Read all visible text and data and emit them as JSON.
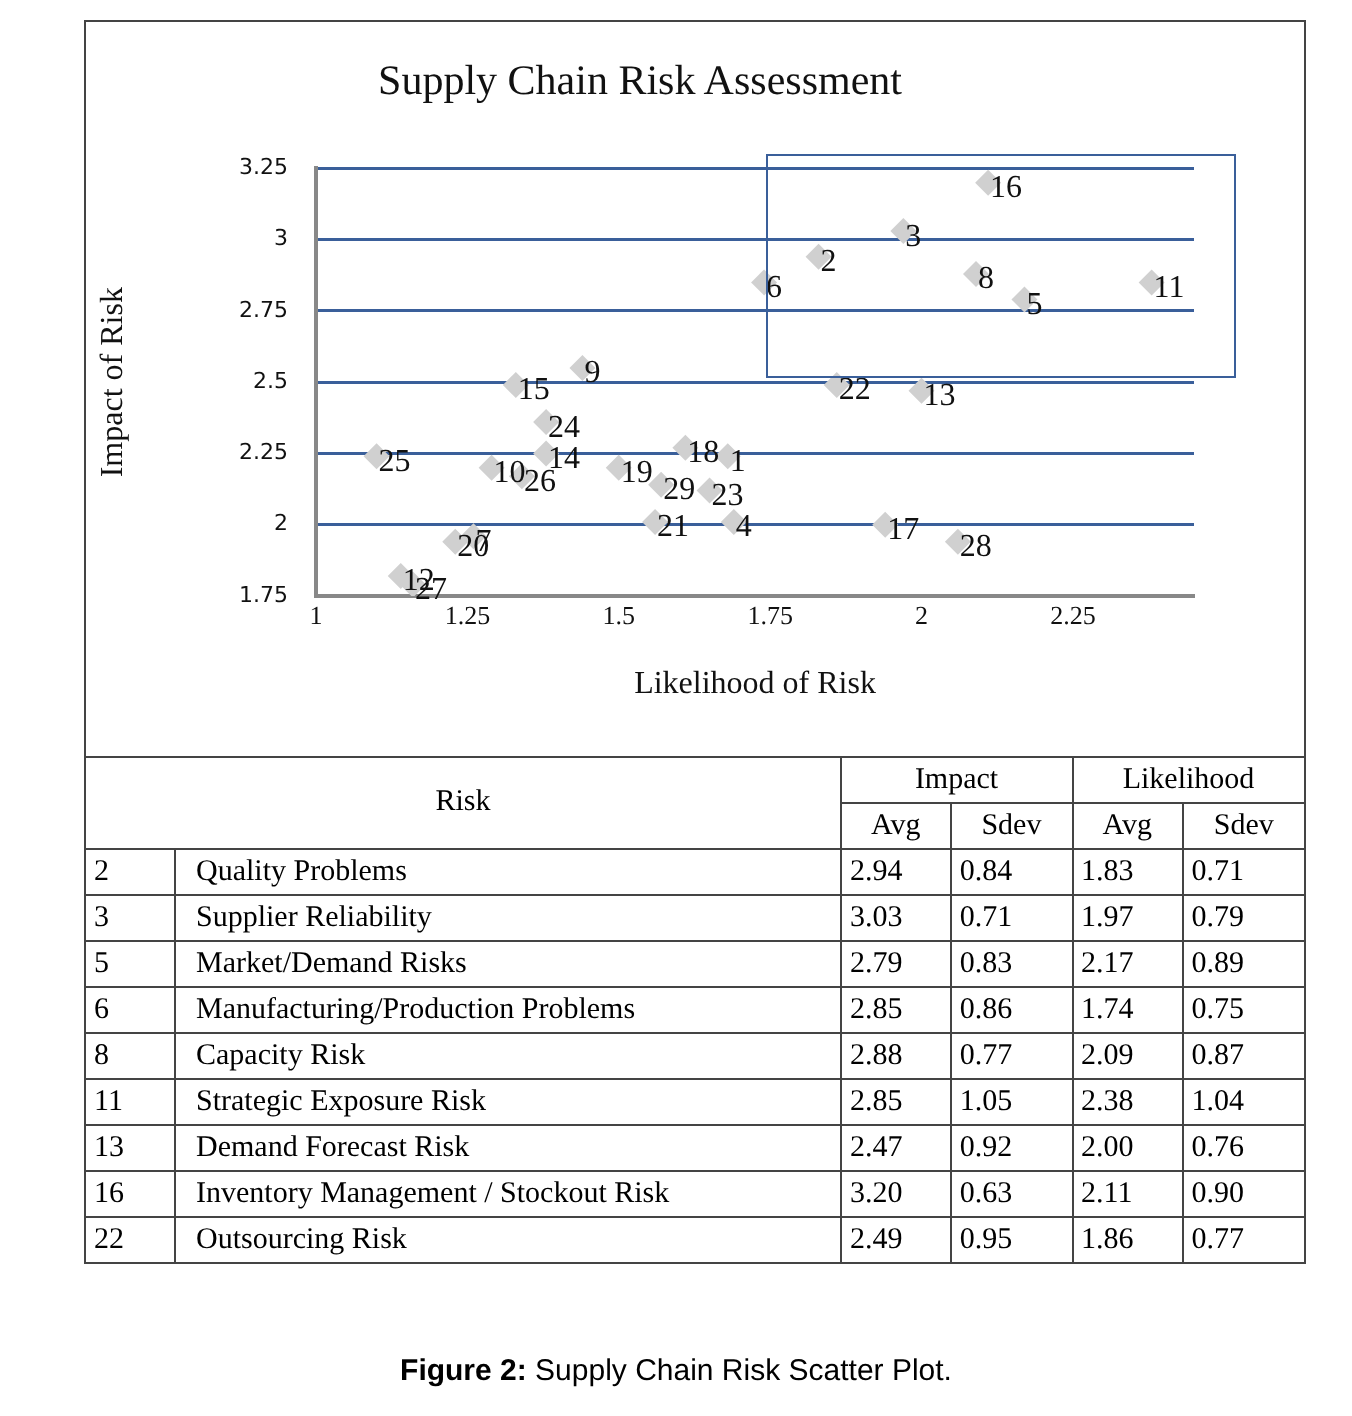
{
  "chart_data": [
    {
      "type": "scatter",
      "title": "Supply Chain Risk Assessment",
      "xlabel": "Likelihood of Risk",
      "ylabel": "Impact of Risk",
      "x": [
        1.68,
        1.83,
        1.97,
        1.69,
        2.17,
        1.74,
        1.26,
        2.09,
        1.44,
        1.29,
        2.38,
        1.14,
        2.0,
        1.38,
        1.33,
        2.11,
        1.94,
        1.61,
        1.5,
        1.23,
        1.56,
        1.86,
        1.65,
        1.38,
        1.1,
        1.34,
        1.16,
        2.06,
        1.57
      ],
      "values": [
        2.24,
        2.94,
        3.03,
        2.01,
        2.79,
        2.85,
        1.96,
        2.88,
        2.55,
        2.2,
        2.85,
        1.82,
        2.47,
        2.25,
        2.49,
        3.2,
        2.0,
        2.27,
        2.2,
        1.94,
        2.01,
        2.49,
        2.12,
        2.36,
        2.24,
        2.17,
        1.79,
        1.94,
        2.14
      ],
      "color": "#d0d0d0",
      "marker": "diamond",
      "grid": "y",
      "legend": false,
      "xlim": [
        1,
        2.45
      ],
      "xticks": [
        1,
        1.25,
        1.5,
        1.75,
        2,
        2.25
      ],
      "ylim": [
        1.75,
        3.25
      ],
      "yticks": [
        1.75,
        2,
        2.25,
        2.5,
        2.75,
        3,
        3.25
      ],
      "annotations": [
        {
          "text": "1",
          "x": 1.68,
          "y": 2.24
        },
        {
          "text": "2",
          "x": 1.83,
          "y": 2.94
        },
        {
          "text": "3",
          "x": 1.97,
          "y": 3.03
        },
        {
          "text": "4",
          "x": 1.69,
          "y": 2.01
        },
        {
          "text": "5",
          "x": 2.17,
          "y": 2.79
        },
        {
          "text": "6",
          "x": 1.74,
          "y": 2.85
        },
        {
          "text": "7",
          "x": 1.26,
          "y": 1.96
        },
        {
          "text": "8",
          "x": 2.09,
          "y": 2.88
        },
        {
          "text": "9",
          "x": 1.44,
          "y": 2.55
        },
        {
          "text": "10",
          "x": 1.29,
          "y": 2.2
        },
        {
          "text": "11",
          "x": 2.38,
          "y": 2.85
        },
        {
          "text": "12",
          "x": 1.14,
          "y": 1.82
        },
        {
          "text": "13",
          "x": 2.0,
          "y": 2.47
        },
        {
          "text": "14",
          "x": 1.38,
          "y": 2.25
        },
        {
          "text": "15",
          "x": 1.33,
          "y": 2.49
        },
        {
          "text": "16",
          "x": 2.11,
          "y": 3.2
        },
        {
          "text": "17",
          "x": 1.94,
          "y": 2.0
        },
        {
          "text": "18",
          "x": 1.61,
          "y": 2.27
        },
        {
          "text": "19",
          "x": 1.5,
          "y": 2.2
        },
        {
          "text": "20",
          "x": 1.23,
          "y": 1.94
        },
        {
          "text": "21",
          "x": 1.56,
          "y": 2.01
        },
        {
          "text": "22",
          "x": 1.86,
          "y": 2.49
        },
        {
          "text": "23",
          "x": 1.65,
          "y": 2.12
        },
        {
          "text": "24",
          "x": 1.38,
          "y": 2.36
        },
        {
          "text": "25",
          "x": 1.1,
          "y": 2.24
        },
        {
          "text": "26",
          "x": 1.34,
          "y": 2.17
        },
        {
          "text": "27",
          "x": 1.16,
          "y": 1.79
        },
        {
          "text": "28",
          "x": 2.06,
          "y": 1.94
        },
        {
          "text": "29",
          "x": 1.57,
          "y": 2.14
        }
      ]
    },
    {
      "type": "other",
      "annotations": [
        "Risk",
        "Impact",
        "Likelihood",
        "Figure 2: Supply Chain Risk Scatter Plot."
      ],
      "categories": [
        "Quality Problems",
        "Supplier Reliability",
        "Market/Demand Risks",
        "Manufacturing/Production Problems",
        "Capacity Risk",
        "Strategic Exposure Risk",
        "Demand Forecast Risk",
        "Inventory Management / Stockout Risk",
        "Outsourcing Risk"
      ],
      "series": [
        {
          "values": [
            2,
            3,
            5,
            6,
            8,
            11,
            13,
            16,
            22
          ],
          "value_labels": [
            "2",
            "3",
            "5",
            "6",
            "8",
            "11",
            "13",
            "16",
            "22"
          ]
        },
        {
          "name": "Avg",
          "values": [
            2.94,
            3.03,
            2.79,
            2.85,
            2.88,
            2.85,
            2.47,
            3.2,
            2.49
          ],
          "value_labels": [
            "2.94",
            "3.03",
            "2.79",
            "2.85",
            "2.88",
            "2.85",
            "2.47",
            "3.20",
            "2.49"
          ]
        },
        {
          "name": "Sdev",
          "values": [
            0.84,
            0.71,
            0.83,
            0.86,
            0.77,
            1.05,
            0.92,
            0.63,
            0.95
          ],
          "value_labels": [
            "0.84",
            "0.71",
            "0.83",
            "0.86",
            "0.77",
            "1.05",
            "0.92",
            "0.63",
            "0.95"
          ]
        },
        {
          "name": "Avg",
          "values": [
            1.83,
            1.97,
            2.17,
            1.74,
            2.09,
            2.38,
            2.0,
            2.11,
            1.86
          ],
          "value_labels": [
            "1.83",
            "1.97",
            "2.17",
            "1.74",
            "2.09",
            "2.38",
            "2.00",
            "2.11",
            "1.86"
          ]
        },
        {
          "name": "Sdev",
          "values": [
            0.71,
            0.79,
            0.89,
            0.75,
            0.87,
            1.04,
            0.76,
            0.9,
            0.77
          ],
          "value_labels": [
            "0.71",
            "0.79",
            "0.89",
            "0.75",
            "0.87",
            "1.04",
            "0.76",
            "0.90",
            "0.77"
          ]
        }
      ]
    }
  ]
}
